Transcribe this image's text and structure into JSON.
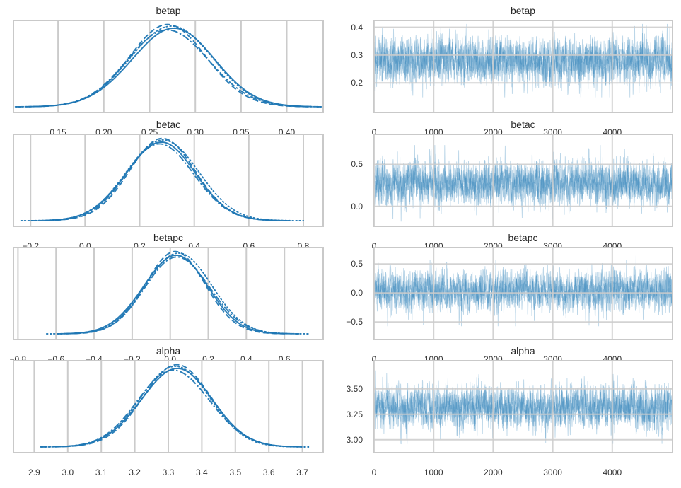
{
  "style": {
    "accent_color": "#1f77b4",
    "grid_color": "#cbcbcb",
    "spine_color": "#c9c9c9",
    "text_color": "#333333",
    "background": "#ffffff",
    "trace_line_opacity": 0.3
  },
  "chart_data": [
    {
      "plot": "density",
      "type": "line",
      "title": "betap",
      "row": 0,
      "col": "left",
      "xlim": [
        0.102,
        0.439
      ],
      "xticks": [
        0.15,
        0.2,
        0.25,
        0.3,
        0.35,
        0.4
      ],
      "xtick_labels": [
        "0.15",
        "0.20",
        "0.25",
        "0.30",
        "0.35",
        "0.40"
      ],
      "grid": "x",
      "legend": false,
      "n_chains": 4,
      "chain_linestyles": [
        "solid",
        "dashed",
        "dashdot",
        "dotted"
      ],
      "density": {
        "mean": 0.273,
        "sd": 0.044
      }
    },
    {
      "plot": "trace",
      "type": "line",
      "title": "betap",
      "row": 0,
      "col": "right",
      "xlim": [
        0,
        5000
      ],
      "xticks": [
        0,
        1000,
        2000,
        3000,
        4000
      ],
      "xtick_labels": [
        "0",
        "1000",
        "2000",
        "3000",
        "4000"
      ],
      "ylim": [
        0.096,
        0.422
      ],
      "yticks": [
        0.4,
        0.3,
        0.2
      ],
      "ytick_labels": [
        "0.4",
        "0.3",
        "0.2"
      ],
      "grid": "xy",
      "legend": false,
      "n_chains": 4,
      "n_samples": 5000,
      "series": {
        "mean": 0.28,
        "sd": 0.04,
        "spike_cap_sd": 3.3
      }
    },
    {
      "plot": "density",
      "type": "line",
      "title": "betac",
      "row": 1,
      "col": "left",
      "xlim": [
        -0.26,
        0.87
      ],
      "xticks": [
        -0.2,
        0.0,
        0.2,
        0.4,
        0.6,
        0.8
      ],
      "xtick_labels": [
        "−0.2",
        "0.0",
        "0.2",
        "0.4",
        "0.6",
        "0.8"
      ],
      "grid": "x",
      "legend": false,
      "n_chains": 4,
      "chain_linestyles": [
        "solid",
        "dashed",
        "dashdot",
        "dotted"
      ],
      "density": {
        "mean": 0.275,
        "sd": 0.125
      }
    },
    {
      "plot": "trace",
      "type": "line",
      "title": "betac",
      "row": 1,
      "col": "right",
      "xlim": [
        0,
        5000
      ],
      "xticks": [
        0,
        1000,
        2000,
        3000,
        4000
      ],
      "xtick_labels": [
        "0",
        "1000",
        "2000",
        "3000",
        "4000"
      ],
      "ylim": [
        -0.23,
        0.85
      ],
      "yticks": [
        0.5,
        0.0
      ],
      "ytick_labels": [
        "0.5",
        "0.0"
      ],
      "grid": "xy",
      "legend": false,
      "n_chains": 4,
      "n_samples": 5000,
      "series": {
        "mean": 0.275,
        "sd": 0.12,
        "spike_cap_sd": 3.8
      }
    },
    {
      "plot": "density",
      "type": "line",
      "title": "betapc",
      "row": 2,
      "col": "left",
      "xlim": [
        -0.82,
        0.8
      ],
      "xticks": [
        -0.8,
        -0.6,
        -0.4,
        -0.2,
        0.0,
        0.2,
        0.4,
        0.6
      ],
      "xtick_labels": [
        "−0.8",
        "−0.6",
        "−0.4",
        "−0.2",
        "0.0",
        "0.2",
        "0.4",
        "0.6"
      ],
      "grid": "x",
      "legend": false,
      "n_chains": 4,
      "chain_linestyles": [
        "solid",
        "dashed",
        "dashdot",
        "dotted"
      ],
      "density": {
        "mean": 0.035,
        "sd": 0.165
      }
    },
    {
      "plot": "trace",
      "type": "line",
      "title": "betapc",
      "row": 2,
      "col": "right",
      "xlim": [
        0,
        5000
      ],
      "xticks": [
        0,
        1000,
        2000,
        3000,
        4000
      ],
      "xtick_labels": [
        "0",
        "1000",
        "2000",
        "3000",
        "4000"
      ],
      "ylim": [
        -0.79,
        0.77
      ],
      "yticks": [
        0.5,
        0.0,
        -0.5
      ],
      "ytick_labels": [
        "0.5",
        "0.0",
        "−0.5"
      ],
      "grid": "xy",
      "legend": false,
      "n_chains": 4,
      "n_samples": 5000,
      "series": {
        "mean": 0.035,
        "sd": 0.16,
        "spike_cap_sd": 3.8
      }
    },
    {
      "plot": "density",
      "type": "line",
      "title": "alpha",
      "row": 3,
      "col": "left",
      "xlim": [
        2.84,
        3.76
      ],
      "xticks": [
        2.9,
        3.0,
        3.1,
        3.2,
        3.3,
        3.4,
        3.5,
        3.6,
        3.7
      ],
      "xtick_labels": [
        "2.9",
        "3.0",
        "3.1",
        "3.2",
        "3.3",
        "3.4",
        "3.5",
        "3.6",
        "3.7"
      ],
      "grid": "x",
      "legend": false,
      "n_chains": 4,
      "chain_linestyles": [
        "solid",
        "dashed",
        "dashdot",
        "dotted"
      ],
      "density": {
        "mean": 3.325,
        "sd": 0.105
      }
    },
    {
      "plot": "trace",
      "type": "line",
      "title": "alpha",
      "row": 3,
      "col": "right",
      "xlim": [
        0,
        5000
      ],
      "xticks": [
        0,
        1000,
        2000,
        3000,
        4000
      ],
      "xtick_labels": [
        "0",
        "1000",
        "2000",
        "3000",
        "4000"
      ],
      "ylim": [
        2.88,
        3.77
      ],
      "yticks": [
        3.5,
        3.25,
        3.0
      ],
      "ytick_labels": [
        "3.50",
        "3.25",
        "3.00"
      ],
      "grid": "xy",
      "legend": false,
      "n_chains": 4,
      "n_samples": 5000,
      "series": {
        "mean": 3.32,
        "sd": 0.095,
        "spike_cap_sd": 3.8
      }
    }
  ]
}
